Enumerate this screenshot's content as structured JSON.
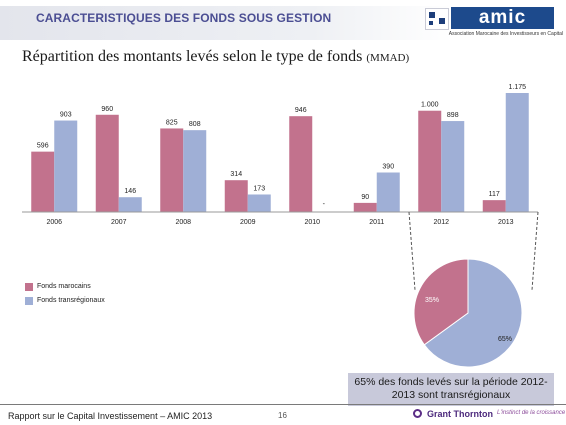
{
  "header": {
    "title": "CARACTERISTIQUES DES FONDS SOUS GESTION",
    "logo_text": "amic",
    "logo_subtitle": "Association Marocaine des Investisseurs en Capital"
  },
  "subtitle": {
    "main": "Répartition des montants levés selon le type de fonds",
    "unit": "(MMAD)"
  },
  "chart_data": [
    {
      "type": "bar",
      "categories": [
        "2006",
        "2007",
        "2008",
        "2009",
        "2010",
        "2011",
        "2012",
        "2013"
      ],
      "series": [
        {
          "name": "Fonds marocains",
          "color": "#c2728d",
          "values": [
            596,
            960,
            825,
            314,
            946,
            90,
            1000,
            117
          ],
          "labels": [
            "596",
            "960",
            "825",
            "314",
            "946",
            "90",
            "1.000",
            "117"
          ]
        },
        {
          "name": "Fonds transrégionaux",
          "color": "#9fafd6",
          "values": [
            903,
            146,
            808,
            173,
            0,
            390,
            898,
            1175
          ],
          "labels": [
            "903",
            "146",
            "808",
            "173",
            "-",
            "390",
            "898",
            "1.175"
          ]
        }
      ],
      "ylim": [
        0,
        1175
      ],
      "grid": false,
      "legend_position": "bottom-left"
    },
    {
      "type": "pie",
      "categories": [
        "Fonds marocains",
        "Fonds transrégionaux"
      ],
      "values": [
        35,
        65
      ],
      "labels": [
        "35%",
        "65%"
      ],
      "colors": [
        "#c2728d",
        "#9fafd6"
      ]
    }
  ],
  "callout": {
    "line1": "65% des fonds levés sur la période 2012-",
    "line2": "2013 sont transrégionaux"
  },
  "footer": {
    "text": "Rapport sur le Capital Investissement – AMIC 2013",
    "page": "16",
    "brand": "Grant Thornton",
    "tagline": "L'instinct de la croissance"
  }
}
